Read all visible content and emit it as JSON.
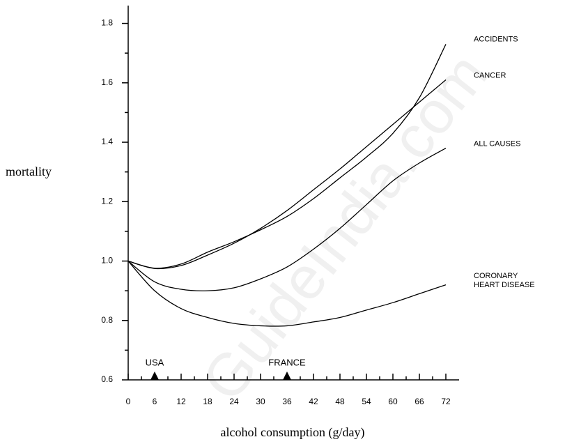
{
  "chart_data": {
    "type": "line",
    "ylabel": "mortality",
    "xlabel": "alcohol consumption (g/day)",
    "x": [
      0,
      6,
      12,
      18,
      24,
      30,
      36,
      42,
      48,
      54,
      60,
      66,
      72
    ],
    "series": [
      {
        "name": "ACCIDENTS",
        "color": "#000000",
        "values": [
          1.0,
          0.976,
          0.99,
          1.03,
          1.065,
          1.105,
          1.15,
          1.21,
          1.28,
          1.35,
          1.43,
          1.55,
          1.73
        ]
      },
      {
        "name": "CANCER",
        "color": "#000000",
        "values": [
          1.0,
          0.975,
          0.985,
          1.02,
          1.06,
          1.11,
          1.17,
          1.24,
          1.31,
          1.385,
          1.46,
          1.535,
          1.61
        ]
      },
      {
        "name": "ALL CAUSES",
        "color": "#000000",
        "values": [
          1.0,
          0.93,
          0.905,
          0.9,
          0.91,
          0.94,
          0.98,
          1.04,
          1.11,
          1.19,
          1.27,
          1.33,
          1.38
        ]
      },
      {
        "name": "CORONARY HEART DISEASE",
        "color": "#000000",
        "values": [
          1.0,
          0.9,
          0.84,
          0.81,
          0.79,
          0.782,
          0.782,
          0.795,
          0.81,
          0.835,
          0.86,
          0.89,
          0.92
        ]
      }
    ],
    "xlim": [
      0,
      75
    ],
    "ylim": [
      0.6,
      1.86
    ],
    "xticks": [
      0,
      6,
      12,
      18,
      24,
      30,
      36,
      42,
      48,
      54,
      60,
      66,
      72
    ],
    "yticks": [
      0.6,
      0.8,
      {
        "value": 1,
        "label": "1.0"
      },
      1.2,
      1.4,
      1.6,
      1.8
    ],
    "xminor": [
      3,
      9,
      15,
      21,
      27,
      33,
      39,
      45,
      51,
      57,
      63,
      69
    ],
    "yminor": [
      0.7,
      0.9,
      1.1,
      1.3,
      1.5,
      1.7
    ],
    "annotations": [
      {
        "label": "USA",
        "x": 6
      },
      {
        "label": "FRANCE",
        "x": 36
      }
    ],
    "watermark": "GuideIndia.com"
  }
}
